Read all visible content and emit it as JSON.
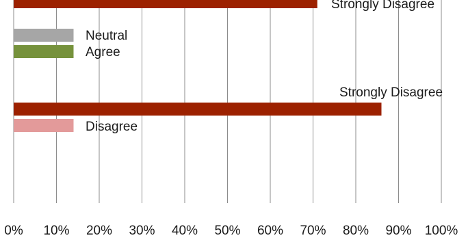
{
  "chart_data": {
    "type": "bar",
    "orientation": "horizontal",
    "xlim": [
      0,
      100
    ],
    "x_ticks": [
      "0%",
      "10%",
      "20%",
      "30%",
      "40%",
      "50%",
      "60%",
      "70%",
      "80%",
      "90%",
      "100%"
    ],
    "grid": true,
    "bars": [
      {
        "label": "Strongly Disagree",
        "value": 71,
        "color": "#9c2100"
      },
      {
        "label": "Neutral",
        "value": 14,
        "color": "#a6a6a6"
      },
      {
        "label": "Agree",
        "value": 14,
        "color": "#76923c"
      },
      {
        "label": "Strongly Disagree",
        "value": 86,
        "color": "#9c2100"
      },
      {
        "label": "Disagree",
        "value": 14,
        "color": "#e39a9a"
      }
    ]
  }
}
